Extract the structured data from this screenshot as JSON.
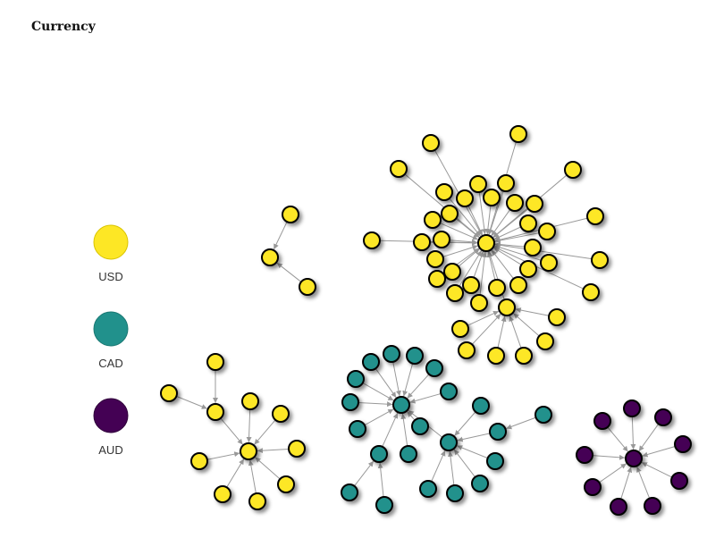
{
  "title": "Currency",
  "legend": [
    {
      "label": "USD",
      "color": "#fde725"
    },
    {
      "label": "CAD",
      "color": "#21918c"
    },
    {
      "label": "AUD",
      "color": "#440154"
    }
  ],
  "colors": {
    "USD": "#fde725",
    "CAD": "#21918c",
    "AUD": "#440154",
    "link": "#999999",
    "node_stroke": "#000000"
  }
}
